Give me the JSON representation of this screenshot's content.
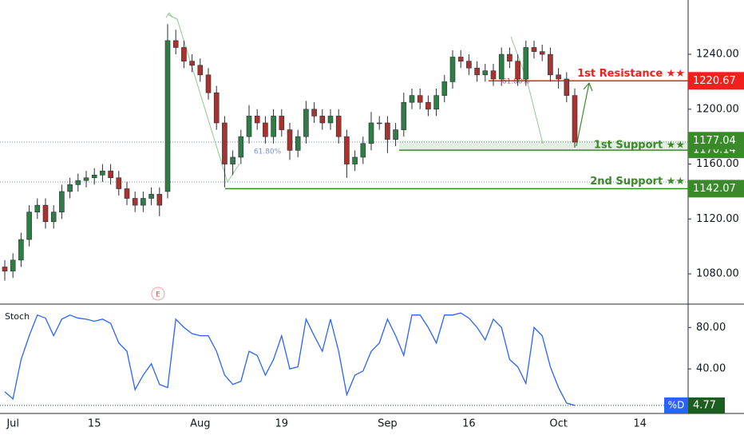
{
  "chart_data": [
    {
      "type": "candlestick",
      "categories": [
        null,
        "Jul",
        null,
        null,
        null,
        null,
        null,
        null,
        null,
        null,
        null,
        "15",
        null,
        null,
        null,
        null,
        null,
        null,
        null,
        null,
        null,
        null,
        null,
        null,
        "Aug",
        null,
        null,
        null,
        null,
        null,
        null,
        null,
        null,
        null,
        "19",
        null,
        null,
        null,
        null,
        null,
        null,
        null,
        null,
        null,
        null,
        null,
        null,
        "Sep",
        null,
        null,
        null,
        null,
        null,
        null,
        null,
        null,
        null,
        "16",
        null,
        null,
        null,
        null,
        null,
        null,
        null,
        null,
        null,
        null,
        "Oct",
        null,
        null,
        null,
        null,
        null,
        null,
        null,
        null,
        null,
        "14",
        null,
        null,
        null,
        null,
        null
      ],
      "open": [
        1085,
        1082,
        1090,
        1105,
        1125,
        1130,
        1118,
        1125,
        1140,
        1145,
        1148,
        1150,
        1152,
        1155,
        1150,
        1142,
        1135,
        1130,
        1135,
        1138,
        1140,
        1250,
        1245,
        1235,
        1232,
        1225,
        1212,
        1190,
        1160,
        1165,
        1180,
        1195,
        1190,
        1180,
        1195,
        1185,
        1170,
        1180,
        1200,
        1195,
        1190,
        1195,
        1180,
        1160,
        1165,
        1175,
        1190,
        1190,
        1178,
        1185,
        1205,
        1210,
        1205,
        1200,
        1210,
        1220,
        1238,
        1235,
        1230,
        1225,
        1228,
        1222,
        1240,
        1235,
        1222,
        1245,
        1242,
        1240,
        1225,
        1222,
        1210,
        null,
        null,
        null,
        null,
        null,
        null,
        null,
        null,
        null,
        null,
        null,
        null,
        null
      ],
      "high": [
        1090,
        1095,
        1110,
        1130,
        1135,
        1135,
        1130,
        1145,
        1150,
        1153,
        1155,
        1157,
        1160,
        1160,
        1155,
        1147,
        1140,
        1140,
        1143,
        1143,
        1262,
        1258,
        1250,
        1240,
        1237,
        1230,
        1217,
        1195,
        1170,
        1185,
        1203,
        1200,
        1195,
        1200,
        1200,
        1190,
        1185,
        1206,
        1205,
        1200,
        1200,
        1200,
        1185,
        1170,
        1180,
        1198,
        1195,
        1195,
        1190,
        1212,
        1215,
        1215,
        1210,
        1215,
        1225,
        1243,
        1243,
        1240,
        1235,
        1233,
        1233,
        1245,
        1245,
        1240,
        1250,
        1250,
        1247,
        1245,
        1230,
        1227,
        1215,
        null,
        null,
        null,
        null,
        null,
        null,
        null,
        null,
        null,
        null,
        null,
        null,
        null
      ],
      "low": [
        1075,
        1077,
        1085,
        1100,
        1120,
        1113,
        1113,
        1120,
        1135,
        1140,
        1143,
        1145,
        1147,
        1145,
        1137,
        1130,
        1125,
        1125,
        1130,
        1122,
        1135,
        1240,
        1230,
        1227,
        1220,
        1207,
        1185,
        1143,
        1152,
        1160,
        1175,
        1185,
        1175,
        1175,
        1180,
        1163,
        1165,
        1175,
        1190,
        1185,
        1185,
        1175,
        1150,
        1155,
        1160,
        1170,
        1185,
        1168,
        1173,
        1180,
        1200,
        1200,
        1195,
        1195,
        1205,
        1215,
        1230,
        1225,
        1220,
        1220,
        1217,
        1217,
        1230,
        1217,
        1217,
        1237,
        1235,
        1220,
        1215,
        1205,
        1172,
        null,
        null,
        null,
        null,
        null,
        null,
        null,
        null,
        null,
        null,
        null,
        null,
        null
      ],
      "close": [
        1082,
        1090,
        1105,
        1125,
        1130,
        1118,
        1125,
        1140,
        1145,
        1148,
        1150,
        1152,
        1155,
        1150,
        1142,
        1135,
        1130,
        1135,
        1138,
        1130,
        1250,
        1245,
        1235,
        1232,
        1225,
        1212,
        1190,
        1160,
        1165,
        1180,
        1195,
        1190,
        1180,
        1195,
        1185,
        1170,
        1180,
        1200,
        1195,
        1190,
        1195,
        1180,
        1160,
        1165,
        1175,
        1190,
        1190,
        1178,
        1185,
        1205,
        1210,
        1205,
        1200,
        1210,
        1220,
        1238,
        1235,
        1230,
        1225,
        1228,
        1222,
        1240,
        1235,
        1222,
        1245,
        1242,
        1240,
        1225,
        1222,
        1210,
        1176,
        null,
        null,
        null,
        null,
        null,
        null,
        null,
        null,
        null,
        null,
        null,
        null,
        null
      ],
      "up_color": "#2f7d45",
      "down_color": "#a8322d",
      "ylim": [
        1058.5,
        1279.6
      ],
      "yticks": [
        {
          "value": 1080,
          "label": "1080.00"
        },
        {
          "value": 1120,
          "label": "1120.00"
        },
        {
          "value": 1160,
          "label": "1160.00"
        },
        {
          "value": 1200,
          "label": "1200.00"
        },
        {
          "value": 1240,
          "label": "1240.00"
        }
      ],
      "levels": [
        {
          "name": "1st Resistance ★★",
          "value": 1220.67,
          "color": "#f2201c"
        },
        {
          "name": "1st Support ★★",
          "value": 1177.04,
          "zone_low": 1170.14,
          "color": "#3b8a2a"
        },
        {
          "name": "2nd Support ★★",
          "value": 1142.07,
          "color": "#3b8a2a"
        }
      ],
      "annotations": [
        "61.80%",
        "61.80%"
      ],
      "earnings_marker": "E"
    },
    {
      "type": "line",
      "title": "Stoch",
      "series": [
        {
          "name": "%D",
          "color": "#2962ff",
          "values": [
            18,
            11,
            49,
            72,
            92,
            89,
            72,
            88,
            92,
            89,
            88,
            86,
            88,
            84,
            65,
            57,
            20,
            34,
            45,
            25,
            22,
            88,
            80,
            74,
            72,
            72,
            57,
            34,
            25,
            28,
            57,
            53,
            34,
            49,
            72,
            40,
            42,
            88,
            72,
            57,
            88,
            57,
            15,
            34,
            38,
            57,
            65,
            88,
            72,
            53,
            92,
            92,
            80,
            65,
            92,
            92,
            94,
            89,
            80,
            68,
            88,
            80,
            49,
            42,
            26,
            80,
            72,
            42,
            22,
            7,
            4.77,
            null,
            null,
            null,
            null,
            null,
            null,
            null,
            null,
            null,
            null,
            null,
            null,
            null
          ]
        }
      ],
      "ylim": [
        -3,
        101
      ],
      "yticks": [
        {
          "value": 40,
          "label": "40.00"
        },
        {
          "value": 80,
          "label": "80.00"
        }
      ]
    }
  ]
}
